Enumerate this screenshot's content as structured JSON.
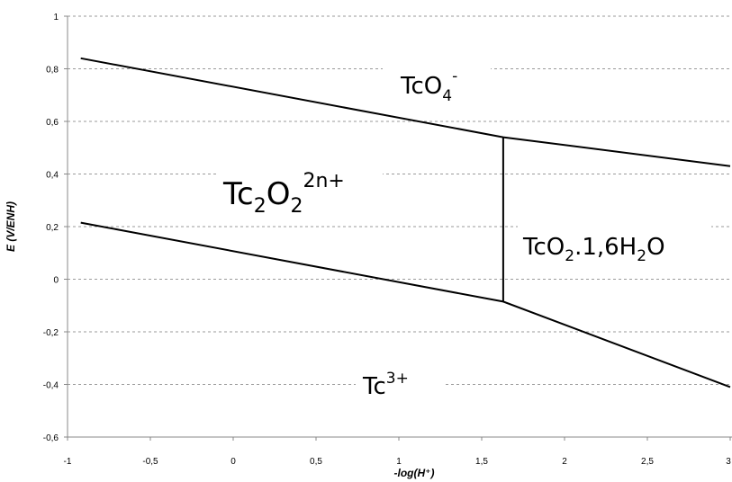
{
  "chart_data": {
    "type": "line",
    "xlabel": "-log(H⁺)",
    "ylabel": "E (V/ENH)",
    "xlim": [
      -1,
      3
    ],
    "ylim": [
      -0.6,
      1
    ],
    "x_ticks": [
      "-1",
      "-0,5",
      "0",
      "0,5",
      "1",
      "1,5",
      "2",
      "2,5",
      "3"
    ],
    "y_ticks": [
      "-0,6",
      "-0,4",
      "-0,2",
      "0",
      "0,2",
      "0,4",
      "0,6",
      "0,8",
      "1"
    ],
    "grid": "horizontal dashed",
    "series": [
      {
        "points": [
          [
            -0.92,
            0.84
          ],
          [
            1.63,
            0.54
          ],
          [
            3.0,
            0.43
          ]
        ]
      },
      {
        "points": [
          [
            -0.92,
            0.215
          ],
          [
            1.63,
            -0.085
          ],
          [
            3.0,
            -0.41
          ]
        ]
      },
      {
        "points": [
          [
            1.63,
            0.54
          ],
          [
            1.63,
            -0.085
          ]
        ]
      }
    ],
    "regions": [
      {
        "base": "TcO",
        "sub": "4",
        "sup": "-"
      },
      {
        "base": "Tc",
        "sub": "2",
        "base2": "O",
        "sub2": "2",
        "sup": "2n+"
      },
      {
        "base": "TcO",
        "sub": "2",
        "base2": ".1,6H",
        "sub2": "2",
        "base3": "O"
      },
      {
        "base": "Tc",
        "sup": "3+"
      }
    ]
  }
}
